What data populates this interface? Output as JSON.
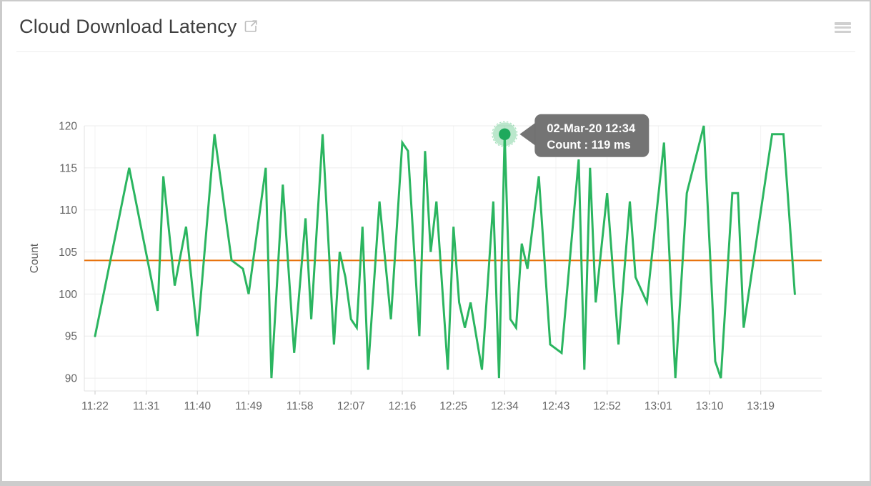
{
  "header": {
    "title": "Cloud Download Latency",
    "external_link_icon": "open-in-new-icon",
    "menu_icon": "hamburger-menu-icon"
  },
  "chart_data": {
    "type": "line",
    "title": "Cloud Download Latency",
    "xlabel": "",
    "ylabel": "Count",
    "unit": "ms",
    "ylim": [
      90,
      120
    ],
    "y_ticks": [
      120,
      115,
      110,
      105,
      100,
      95,
      90
    ],
    "x_ticks": [
      "11:22",
      "11:31",
      "11:40",
      "11:49",
      "11:58",
      "12:07",
      "12:16",
      "12:25",
      "12:34",
      "12:43",
      "12:52",
      "13:01",
      "13:10",
      "13:19"
    ],
    "grid": "horizontal-strong-vertical-faint",
    "series": [
      {
        "name": "Count",
        "color": "#2bb560",
        "points": [
          [
            "11:22",
            95
          ],
          [
            "11:28",
            115
          ],
          [
            "11:33",
            98
          ],
          [
            "11:34",
            114
          ],
          [
            "11:36",
            101
          ],
          [
            "11:38",
            108
          ],
          [
            "11:40",
            95
          ],
          [
            "11:43",
            119
          ],
          [
            "11:46",
            104
          ],
          [
            "11:48",
            103
          ],
          [
            "11:49",
            100
          ],
          [
            "11:52",
            115
          ],
          [
            "11:53",
            90
          ],
          [
            "11:55",
            113
          ],
          [
            "11:57",
            93
          ],
          [
            "11:59",
            109
          ],
          [
            "12:00",
            97
          ],
          [
            "12:02",
            119
          ],
          [
            "12:04",
            94
          ],
          [
            "12:05",
            105
          ],
          [
            "12:06",
            102
          ],
          [
            "12:07",
            97
          ],
          [
            "12:08",
            96
          ],
          [
            "12:09",
            108
          ],
          [
            "12:10",
            91
          ],
          [
            "12:12",
            111
          ],
          [
            "12:14",
            97
          ],
          [
            "12:16",
            118
          ],
          [
            "12:17",
            117
          ],
          [
            "12:19",
            95
          ],
          [
            "12:20",
            117
          ],
          [
            "12:21",
            105
          ],
          [
            "12:22",
            111
          ],
          [
            "12:24",
            91
          ],
          [
            "12:25",
            108
          ],
          [
            "12:26",
            99
          ],
          [
            "12:27",
            96
          ],
          [
            "12:28",
            99
          ],
          [
            "12:30",
            91
          ],
          [
            "12:32",
            111
          ],
          [
            "12:33",
            90
          ],
          [
            "12:34",
            119
          ],
          [
            "12:35",
            97
          ],
          [
            "12:36",
            96
          ],
          [
            "12:37",
            106
          ],
          [
            "12:38",
            103
          ],
          [
            "12:40",
            114
          ],
          [
            "12:42",
            94
          ],
          [
            "12:44",
            93
          ],
          [
            "12:47",
            116
          ],
          [
            "12:48",
            91
          ],
          [
            "12:49",
            115
          ],
          [
            "12:50",
            99
          ],
          [
            "12:52",
            112
          ],
          [
            "12:54",
            94
          ],
          [
            "12:56",
            111
          ],
          [
            "12:57",
            102
          ],
          [
            "12:59",
            99
          ],
          [
            "13:02",
            118
          ],
          [
            "13:04",
            90
          ],
          [
            "13:06",
            112
          ],
          [
            "13:09",
            120
          ],
          [
            "13:11",
            92
          ],
          [
            "13:12",
            90
          ],
          [
            "13:14",
            112
          ],
          [
            "13:15",
            112
          ],
          [
            "13:16",
            96
          ],
          [
            "13:21",
            119
          ],
          [
            "13:23",
            119
          ],
          [
            "13:25",
            100
          ]
        ]
      }
    ],
    "average_line": {
      "value": 104,
      "color": "#e8730e"
    },
    "marked_point": {
      "time": "12:34",
      "value": 119,
      "core_color": "#1fa95c",
      "halo_color": "#2bb560"
    },
    "tooltip": {
      "line1": "02-Mar-20 12:34",
      "line2": "Count : 119 ms",
      "bg_color": "#6f6f6f",
      "text_color": "#ffffff"
    },
    "axis_text_color": "#666666",
    "gridline_color": "#ececec",
    "axis_line_color": "#e0e0e0"
  }
}
